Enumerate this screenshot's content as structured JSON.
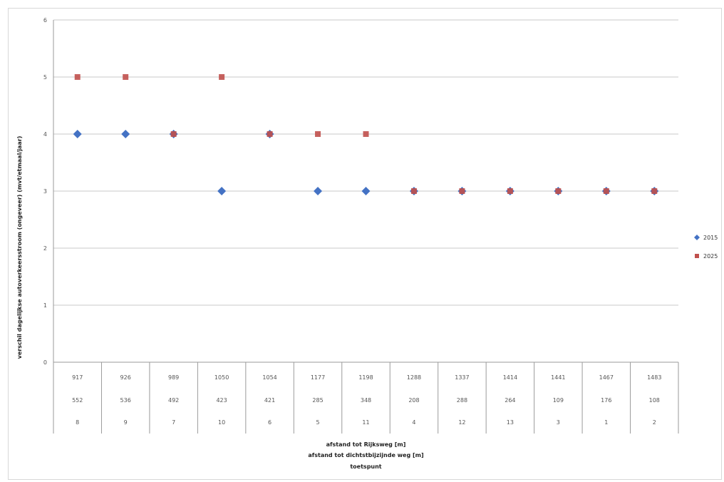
{
  "chart_data": {
    "type": "scatter",
    "ylabel": "verschil dagelijkse autoverkeersstroom (ongeveer) (mvt/etmaal/jaar)",
    "ylim": [
      0,
      6
    ],
    "yticks": [
      0,
      1,
      2,
      3,
      4,
      5,
      6
    ],
    "grid": true,
    "legend": "right",
    "category_rows": [
      {
        "label": "afstand tot Rijksweg [m]",
        "values": [
          "917",
          "926",
          "989",
          "1050",
          "1054",
          "1177",
          "1198",
          "1288",
          "1337",
          "1414",
          "1441",
          "1467",
          "1483"
        ]
      },
      {
        "label": "afstand tot dichtstbijzijnde weg [m]",
        "values": [
          "552",
          "536",
          "492",
          "423",
          "421",
          "285",
          "348",
          "208",
          "288",
          "264",
          "109",
          "176",
          "108"
        ]
      },
      {
        "label": "toetspunt",
        "values": [
          "8",
          "9",
          "7",
          "10",
          "6",
          "5",
          "11",
          "4",
          "12",
          "13",
          "3",
          "1",
          "2"
        ]
      }
    ],
    "series": [
      {
        "name": "2015",
        "color": "#4472c4",
        "marker": "diamond",
        "values": [
          4,
          4,
          4,
          3,
          4,
          3,
          3,
          3,
          3,
          3,
          3,
          3,
          3
        ]
      },
      {
        "name": "2025",
        "color": "#c0504d",
        "marker": "square",
        "values": [
          5,
          5,
          4,
          5,
          4,
          4,
          4,
          3,
          3,
          3,
          3,
          3,
          3
        ]
      }
    ]
  }
}
